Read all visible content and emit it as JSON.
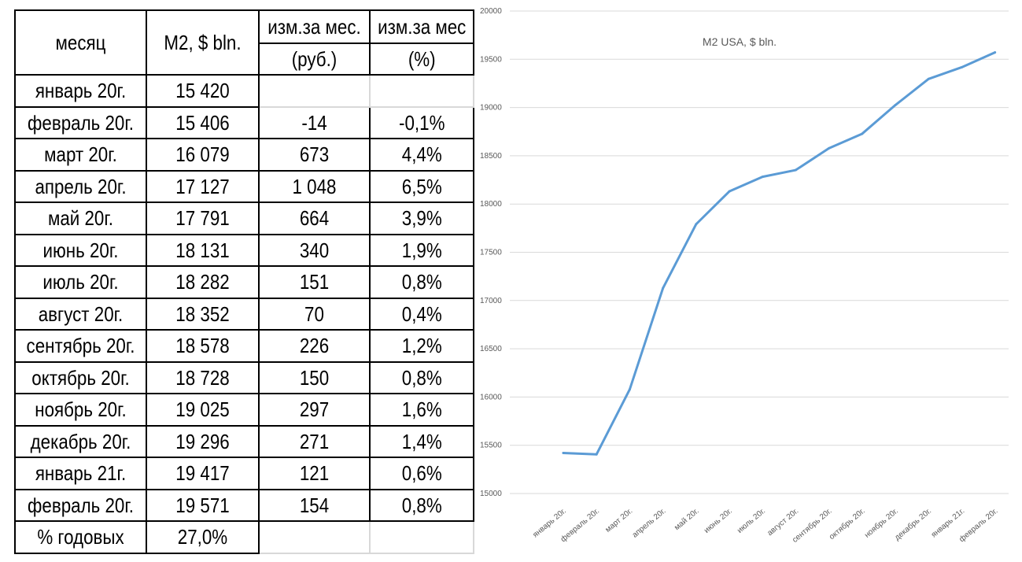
{
  "table": {
    "headers": {
      "month": "месяц",
      "m2": "M2, $ bln.",
      "chg_abs_top": "изм.за мес.",
      "chg_abs_bottom": "(руб.)",
      "chg_pct_top": "изм.за мес",
      "chg_pct_bottom": "(%)"
    },
    "rows": [
      {
        "month": "январь 20г.",
        "m2": "15 420",
        "abs": "",
        "pct": ""
      },
      {
        "month": "февраль 20г.",
        "m2": "15 406",
        "abs": "-14",
        "pct": "-0,1%"
      },
      {
        "month": "март 20г.",
        "m2": "16 079",
        "abs": "673",
        "pct": "4,4%"
      },
      {
        "month": "апрель 20г.",
        "m2": "17 127",
        "abs": "1 048",
        "pct": "6,5%"
      },
      {
        "month": "май 20г.",
        "m2": "17 791",
        "abs": "664",
        "pct": "3,9%"
      },
      {
        "month": "июнь 20г.",
        "m2": "18 131",
        "abs": "340",
        "pct": "1,9%"
      },
      {
        "month": "июль 20г.",
        "m2": "18 282",
        "abs": "151",
        "pct": "0,8%"
      },
      {
        "month": "август 20г.",
        "m2": "18 352",
        "abs": "70",
        "pct": "0,4%"
      },
      {
        "month": "сентябрь 20г.",
        "m2": "18 578",
        "abs": "226",
        "pct": "1,2%"
      },
      {
        "month": "октябрь 20г.",
        "m2": "18 728",
        "abs": "150",
        "pct": "0,8%"
      },
      {
        "month": "ноябрь 20г.",
        "m2": "19 025",
        "abs": "297",
        "pct": "1,6%"
      },
      {
        "month": "декабрь 20г.",
        "m2": "19 296",
        "abs": "271",
        "pct": "1,4%"
      },
      {
        "month": "январь 21г.",
        "m2": "19 417",
        "abs": "121",
        "pct": "0,6%"
      },
      {
        "month": "февраль 20г.",
        "m2": "19 571",
        "abs": "154",
        "pct": "0,8%"
      }
    ],
    "annual": {
      "label": "% годовых",
      "value": "27,0%"
    }
  },
  "chart_data": {
    "type": "line",
    "title": "M2 USA, $ bln.",
    "categories": [
      "январь 20г.",
      "февраль 20г.",
      "март 20г.",
      "апрель 20г.",
      "май 20г.",
      "июнь 20г.",
      "июль 20г.",
      "август 20г.",
      "сентябрь 20г.",
      "октябрь 20г.",
      "ноябрь 20г.",
      "декабрь 20г.",
      "январь 21г.",
      "февраль 20г."
    ],
    "series": [
      {
        "values": [
          15420,
          15406,
          16079,
          17127,
          17791,
          18131,
          18282,
          18352,
          18578,
          18728,
          19025,
          19296,
          19417,
          19571
        ]
      }
    ],
    "ylim": [
      15000,
      20000
    ],
    "yticks": [
      15000,
      15500,
      16000,
      16500,
      17000,
      17500,
      18000,
      18500,
      19000,
      19500,
      20000
    ],
    "grid": true,
    "line_color": "#5b9bd5"
  }
}
